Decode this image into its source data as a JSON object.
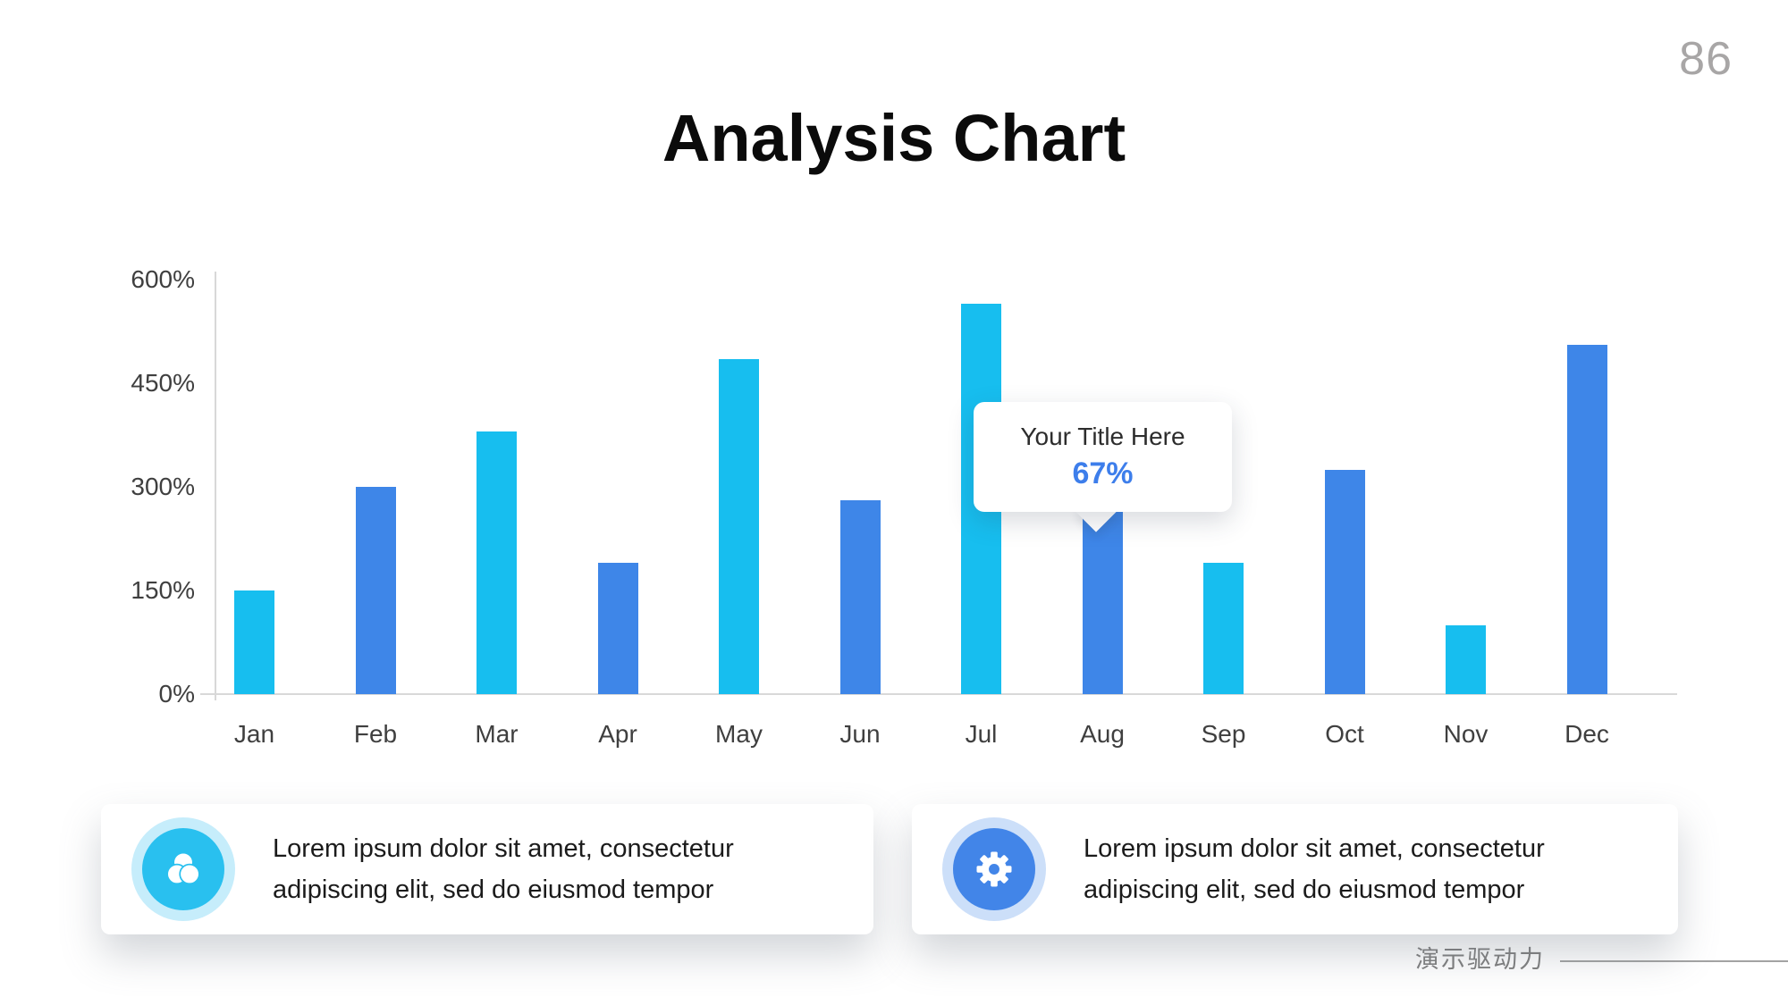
{
  "page": {
    "number": "86",
    "brand_text": "演示驱动力"
  },
  "title": "Analysis Chart",
  "chart_data": {
    "type": "bar",
    "title": "Analysis Chart",
    "categories": [
      "Jan",
      "Feb",
      "Mar",
      "Apr",
      "May",
      "Jun",
      "Jul",
      "Aug",
      "Sep",
      "Oct",
      "Nov",
      "Dec"
    ],
    "values": [
      150,
      300,
      380,
      190,
      485,
      280,
      565,
      330,
      190,
      325,
      100,
      505
    ],
    "unit": "%",
    "xlabel": "",
    "ylabel": "",
    "ylim": [
      0,
      600
    ],
    "yticks": [
      "0%",
      "150%",
      "300%",
      "450%",
      "600%"
    ],
    "grid": false,
    "legend_position": "none",
    "bar_colors": [
      "#17BEEF",
      "#3E86E8"
    ],
    "axis_color": "#D8D8D8",
    "tick_label_color": "#3F3F3F",
    "tooltip": {
      "label": "Your Title Here",
      "value": "67%",
      "anchor_category": "Aug",
      "value_color": "#3D7EEB"
    }
  },
  "cards": [
    {
      "icon": "color-blend-icon",
      "accent": "#29C0EF",
      "ring": "#C6EDFB",
      "lines": [
        "Lorem ipsum dolor sit amet, consectetur",
        "adipiscing elit, sed do eiusmod tempor"
      ]
    },
    {
      "icon": "gear-icon",
      "accent": "#4285E8",
      "ring": "#CCDFF9",
      "lines": [
        "Lorem ipsum dolor sit amet, consectetur",
        "adipiscing elit, sed do eiusmod tempor"
      ]
    }
  ]
}
